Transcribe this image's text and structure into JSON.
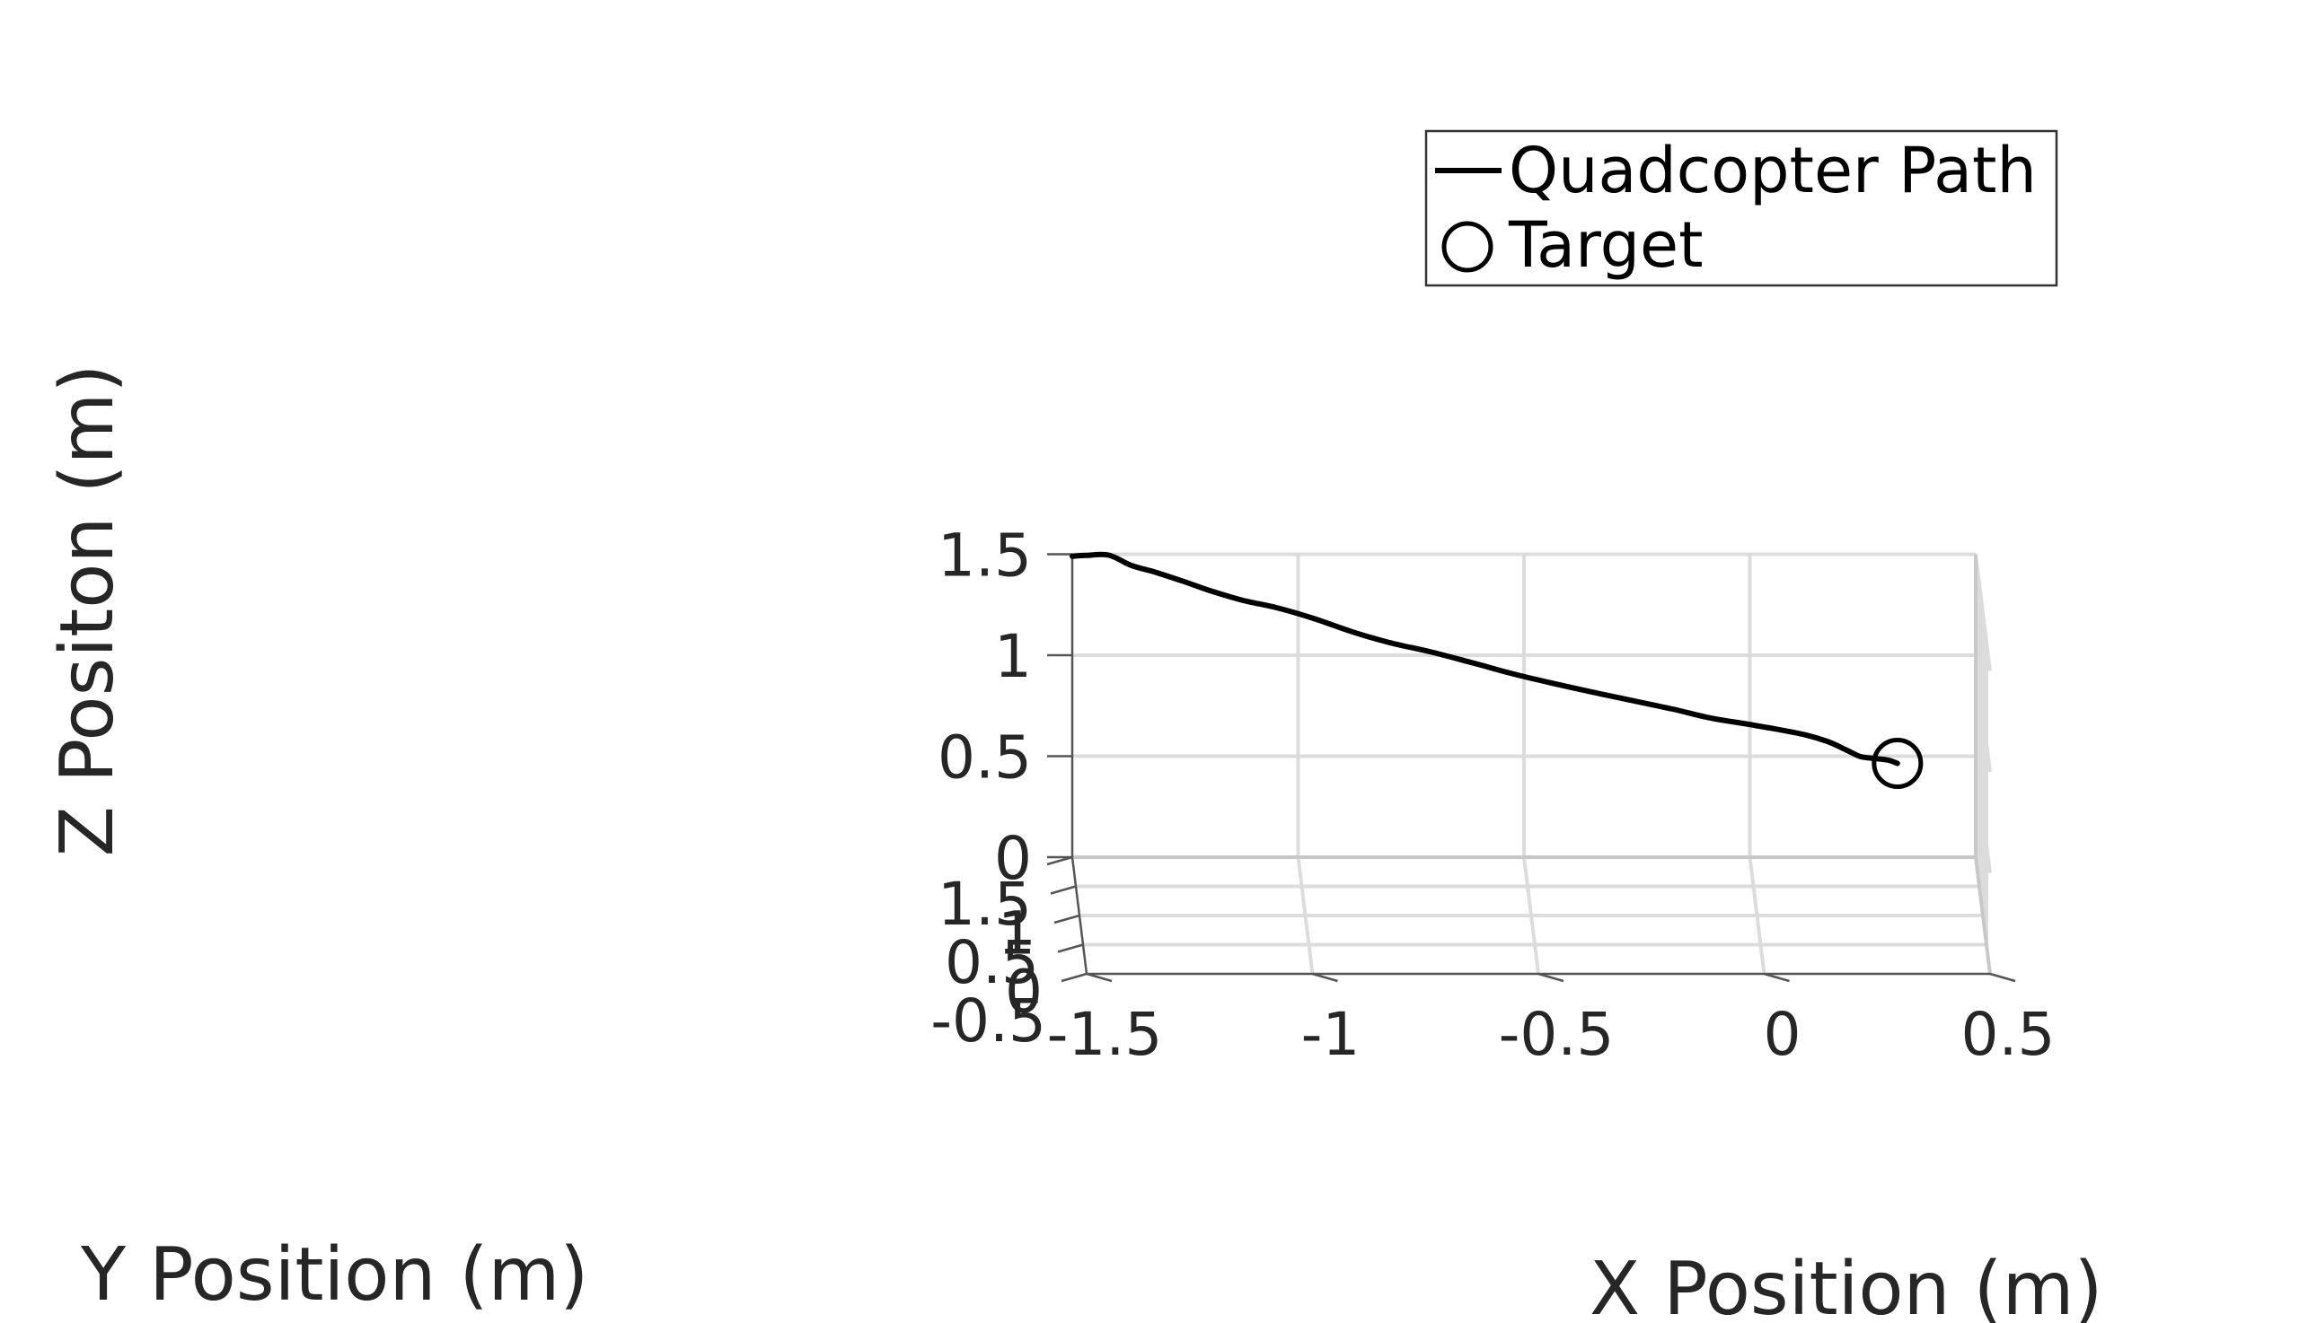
{
  "chart_data": {
    "type": "line3d",
    "xlabel": "X Position (m)",
    "ylabel": "Y Position (m)",
    "zlabel": "Z Positon (m)",
    "xlim": [
      -1.5,
      0.5
    ],
    "ylim": [
      -0.5,
      1.5
    ],
    "zlim": [
      0,
      1.5
    ],
    "xticks": [
      -1.5,
      -1,
      -0.5,
      0,
      0.5
    ],
    "xtick_labels": [
      "-1.5",
      "-1",
      "-0.5",
      "0",
      "0.5"
    ],
    "yticks": [
      -0.5,
      0,
      0.5,
      1,
      1.5
    ],
    "ytick_labels": [
      "-0.5",
      "0",
      "0.5",
      "1",
      "1.5"
    ],
    "zticks": [
      0,
      0.5,
      1,
      1.5
    ],
    "ztick_labels": [
      "0",
      "0.5",
      "1",
      "1.5"
    ],
    "grid": true,
    "legend_position": "top-right",
    "legend": [
      {
        "label": "Quadcopter Path",
        "marker": "line"
      },
      {
        "label": "Target",
        "marker": "circle"
      }
    ],
    "series": [
      {
        "label_ref": 0,
        "color": "#000000",
        "points": [
          {
            "x": -1.5,
            "y": 1.5,
            "z": 1.49
          },
          {
            "x": -1.47,
            "y": 1.48,
            "z": 1.5
          },
          {
            "x": -1.42,
            "y": 1.45,
            "z": 1.51
          },
          {
            "x": -1.37,
            "y": 1.41,
            "z": 1.47
          },
          {
            "x": -1.32,
            "y": 1.37,
            "z": 1.45
          },
          {
            "x": -1.26,
            "y": 1.32,
            "z": 1.42
          },
          {
            "x": -1.2,
            "y": 1.26,
            "z": 1.39
          },
          {
            "x": -1.13,
            "y": 1.2,
            "z": 1.36
          },
          {
            "x": -1.05,
            "y": 1.13,
            "z": 1.34
          },
          {
            "x": -0.97,
            "y": 1.05,
            "z": 1.31
          },
          {
            "x": -0.89,
            "y": 0.97,
            "z": 1.27
          },
          {
            "x": -0.81,
            "y": 0.89,
            "z": 1.24
          },
          {
            "x": -0.72,
            "y": 0.8,
            "z": 1.22
          },
          {
            "x": -0.63,
            "y": 0.72,
            "z": 1.19
          },
          {
            "x": -0.54,
            "y": 0.63,
            "z": 1.16
          },
          {
            "x": -0.46,
            "y": 0.55,
            "z": 1.14
          },
          {
            "x": -0.37,
            "y": 0.46,
            "z": 1.12
          },
          {
            "x": -0.28,
            "y": 0.38,
            "z": 1.1
          },
          {
            "x": -0.19,
            "y": 0.3,
            "z": 1.08
          },
          {
            "x": -0.11,
            "y": 0.22,
            "z": 1.06
          },
          {
            "x": -0.03,
            "y": 0.15,
            "z": 1.05
          },
          {
            "x": 0.04,
            "y": 0.09,
            "z": 1.04
          },
          {
            "x": 0.1,
            "y": 0.03,
            "z": 1.03
          },
          {
            "x": 0.15,
            "y": -0.02,
            "z": 1.01
          },
          {
            "x": 0.19,
            "y": -0.06,
            "z": 0.98
          },
          {
            "x": 0.22,
            "y": -0.1,
            "z": 0.96
          },
          {
            "x": 0.25,
            "y": -0.13,
            "z": 0.96
          },
          {
            "x": 0.28,
            "y": -0.16,
            "z": 0.96
          },
          {
            "x": 0.3,
            "y": -0.18,
            "z": 0.95
          }
        ]
      }
    ],
    "target": {
      "label_ref": 1,
      "x": 0.3,
      "y": -0.18,
      "z": 0.95
    }
  }
}
